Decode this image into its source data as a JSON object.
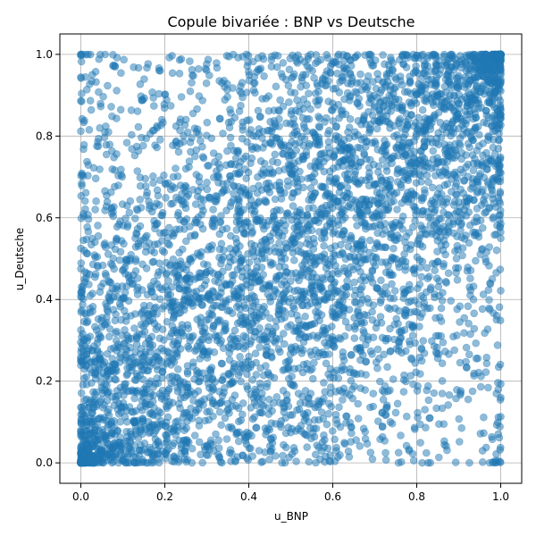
{
  "chart_data": {
    "type": "scatter",
    "title": "Copule bivariée : BNP vs Deutsche",
    "xlabel": "u_BNP",
    "ylabel": "u_Deutsche",
    "xlim": [
      -0.05,
      1.05
    ],
    "ylim": [
      -0.05,
      1.05
    ],
    "xticks": [
      "0.0",
      "0.2",
      "0.4",
      "0.6",
      "0.8",
      "1.0"
    ],
    "yticks": [
      "0.0",
      "0.2",
      "0.4",
      "0.6",
      "0.8",
      "1.0"
    ],
    "grid": true,
    "marker_color": "#1f77b4",
    "marker_alpha": 0.5,
    "n_points": 5000,
    "dependence": "positive dependence with strong tail clustering near (0,0) and (1,1); uniform margins on [0,1]",
    "points_sample": [
      [
        0.02,
        0.03
      ],
      [
        0.05,
        0.08
      ],
      [
        0.01,
        0.12
      ],
      [
        0.08,
        0.05
      ],
      [
        0.03,
        0.2
      ],
      [
        0.15,
        0.1
      ],
      [
        0.1,
        0.3
      ],
      [
        0.25,
        0.2
      ],
      [
        0.3,
        0.45
      ],
      [
        0.45,
        0.35
      ],
      [
        0.5,
        0.55
      ],
      [
        0.55,
        0.7
      ],
      [
        0.65,
        0.6
      ],
      [
        0.7,
        0.85
      ],
      [
        0.8,
        0.75
      ],
      [
        0.9,
        0.92
      ],
      [
        0.95,
        0.97
      ],
      [
        0.98,
        0.9
      ],
      [
        0.97,
        0.99
      ],
      [
        0.85,
        0.95
      ],
      [
        0.1,
        0.8
      ],
      [
        0.2,
        0.95
      ],
      [
        0.9,
        0.05
      ],
      [
        0.8,
        0.15
      ],
      [
        0.4,
        0.6
      ],
      [
        0.6,
        0.3
      ],
      [
        0.35,
        0.9
      ],
      [
        0.75,
        0.4
      ],
      [
        0.05,
        0.6
      ],
      [
        0.95,
        0.5
      ]
    ]
  }
}
